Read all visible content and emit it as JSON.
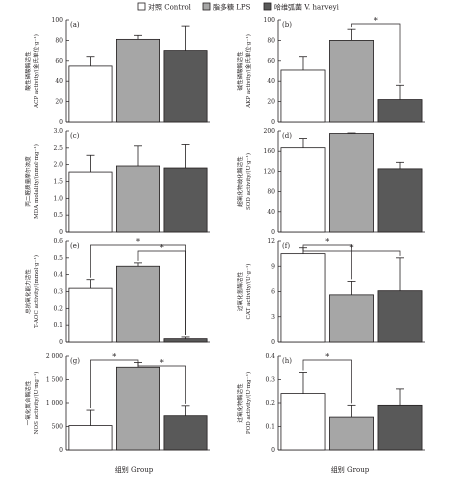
{
  "legend": [
    {
      "label": "对照 Control",
      "color": "#ffffff"
    },
    {
      "label": "脂多糖 LPS",
      "color": "#a6a6a6"
    },
    {
      "label": "哈维弧菌 V. harveyi",
      "color": "#595959"
    }
  ],
  "xlabel": "组别 Group",
  "chart_data": [
    {
      "type": "bar",
      "panel": "(a)",
      "ylabel": [
        "酸性磷酸酶活性",
        "ACP activity/(金氏单位·g⁻¹)"
      ],
      "ylim": [
        0,
        100
      ],
      "yticks": [
        "0",
        "20",
        "40",
        "60",
        "80",
        "100"
      ],
      "categories": [
        "对照 Control",
        "脂多糖 LPS",
        "哈维弧菌 V. harveyi"
      ],
      "values": [
        55,
        81,
        70
      ],
      "errors": [
        9,
        4,
        24
      ],
      "significance": []
    },
    {
      "type": "bar",
      "panel": "(b)",
      "ylabel": [
        "碱性磷酸酶活性",
        "AKP activity/(金氏单位·g⁻¹)"
      ],
      "ylim": [
        0,
        100
      ],
      "yticks": [
        "0",
        "20",
        "40",
        "60",
        "80",
        "100"
      ],
      "categories": [
        "对照 Control",
        "脂多糖 LPS",
        "哈维弧菌 V. harveyi"
      ],
      "values": [
        51,
        80,
        22
      ],
      "errors": [
        13,
        11,
        14
      ],
      "significance": [
        {
          "from": 1,
          "to": 2,
          "label": "*"
        }
      ]
    },
    {
      "type": "bar",
      "panel": "(c)",
      "ylabel": [
        "丙二醛质量摩尔浓度",
        "MDA molality/(nmol·mg⁻¹)"
      ],
      "ylim": [
        0,
        3.0
      ],
      "yticks": [
        "0",
        "0.5",
        "1.0",
        "1.5",
        "2.0",
        "2.5",
        "3.0"
      ],
      "categories": [
        "对照 Control",
        "脂多糖 LPS",
        "哈维弧菌 V. harveyi"
      ],
      "values": [
        1.78,
        1.96,
        1.9
      ],
      "errors": [
        0.5,
        0.6,
        0.7
      ],
      "significance": []
    },
    {
      "type": "bar",
      "panel": "(d)",
      "ylabel": [
        "超氧化物歧化酶活性",
        "SOD activity/(U·g⁻¹)"
      ],
      "ylim": [
        0,
        200
      ],
      "yticks": [
        "0",
        "40",
        "80",
        "120",
        "160",
        "200"
      ],
      "categories": [
        "对照 Control",
        "脂多糖 LPS",
        "哈维弧菌 V. harveyi"
      ],
      "values": [
        167,
        195,
        125
      ],
      "errors": [
        18,
        1,
        13
      ],
      "significance": []
    },
    {
      "type": "bar",
      "panel": "(e)",
      "ylabel": [
        "总抗氧化能力活性",
        "T-AOC activity/(mmol·g⁻¹)"
      ],
      "ylim": [
        0,
        0.6
      ],
      "yticks": [
        "0",
        "0.1",
        "0.2",
        "0.3",
        "0.4",
        "0.5",
        "0.6"
      ],
      "categories": [
        "对照 Control",
        "脂多糖 LPS",
        "哈维弧菌 V. harveyi"
      ],
      "values": [
        0.32,
        0.45,
        0.02
      ],
      "errors": [
        0.05,
        0.02,
        0.01
      ],
      "significance": [
        {
          "from": 0,
          "to": 2,
          "label": "*"
        },
        {
          "from": 1,
          "to": 2,
          "label": "*"
        }
      ]
    },
    {
      "type": "bar",
      "panel": "(f)",
      "ylabel": [
        "过氧化氢酶活性",
        "CAT activity/(U·g⁻¹)"
      ],
      "ylim": [
        0,
        12
      ],
      "yticks": [
        "0",
        "3",
        "6",
        "9",
        "12"
      ],
      "categories": [
        "对照 Control",
        "脂多糖 LPS",
        "哈维弧菌 V. harveyi"
      ],
      "values": [
        10.5,
        5.6,
        6.1
      ],
      "errors": [
        0.7,
        1.6,
        3.9
      ],
      "significance": [
        {
          "from": 0,
          "to": 1,
          "label": "*"
        },
        {
          "from": 0,
          "to": 2,
          "label": "*"
        }
      ]
    },
    {
      "type": "bar",
      "panel": "(g)",
      "ylabel": [
        "一氧化氮合酶活性",
        "NOS activity/(U·mg⁻¹)"
      ],
      "ylim": [
        0,
        2000
      ],
      "yticks": [
        "0",
        "500",
        "1 000",
        "1 500",
        "2 000"
      ],
      "categories": [
        "对照 Control",
        "脂多糖 LPS",
        "哈维弧菌 V. harveyi"
      ],
      "values": [
        520,
        1760,
        730
      ],
      "errors": [
        330,
        100,
        210
      ],
      "significance": [
        {
          "from": 0,
          "to": 1,
          "label": "*"
        },
        {
          "from": 1,
          "to": 2,
          "label": "*"
        }
      ]
    },
    {
      "type": "bar",
      "panel": "(h)",
      "ylabel": [
        "过氧化物酶活性",
        "POD activity/(U·mg⁻¹)"
      ],
      "ylim": [
        0,
        0.4
      ],
      "yticks": [
        "0",
        "0.1",
        "0.2",
        "0.3",
        "0.4"
      ],
      "categories": [
        "对照 Control",
        "脂多糖 LPS",
        "哈维弧菌 V. harveyi"
      ],
      "values": [
        0.24,
        0.14,
        0.19
      ],
      "errors": [
        0.09,
        0.05,
        0.07
      ],
      "significance": [
        {
          "from": 0,
          "to": 1,
          "label": "*"
        }
      ]
    }
  ]
}
